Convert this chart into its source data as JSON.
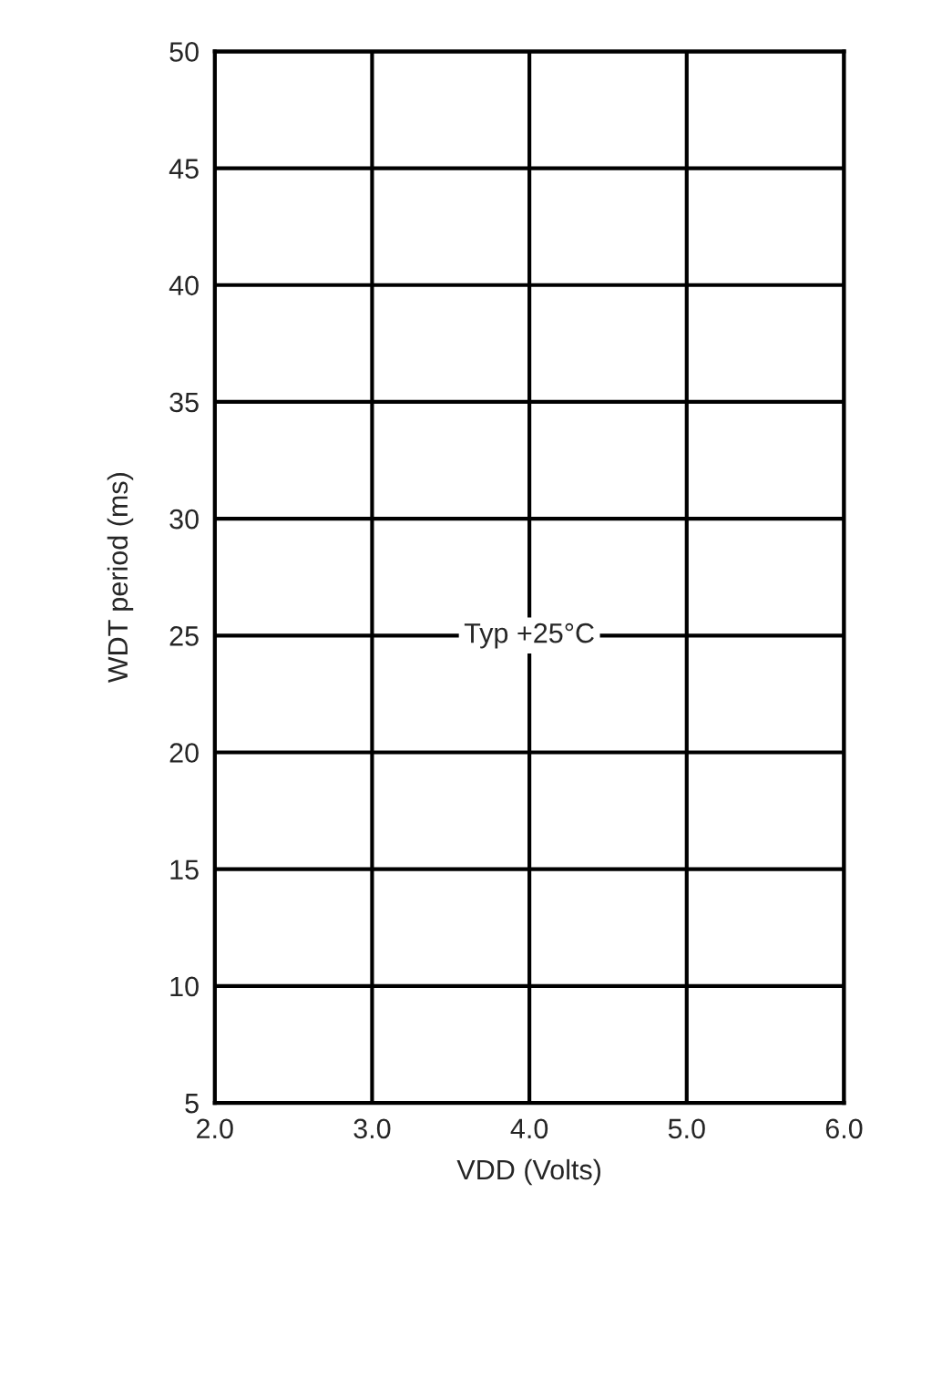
{
  "chart_data": {
    "type": "line",
    "xlabel": "VDD (Volts)",
    "ylabel": "WDT period (ms)",
    "annotations": [
      "Typ +25°C"
    ],
    "xlim": [
      2,
      6
    ],
    "ylim": [
      5,
      50
    ],
    "xticks": [
      {
        "value": 2,
        "label": "2.0"
      },
      {
        "value": 3,
        "label": "3.0"
      },
      {
        "value": 4,
        "label": "4.0"
      },
      {
        "value": 5,
        "label": "5.0"
      },
      {
        "value": 6,
        "label": "6.0"
      }
    ],
    "yticks": [
      5,
      10,
      15,
      20,
      25,
      30,
      35,
      40,
      45,
      50
    ],
    "grid": true
  }
}
